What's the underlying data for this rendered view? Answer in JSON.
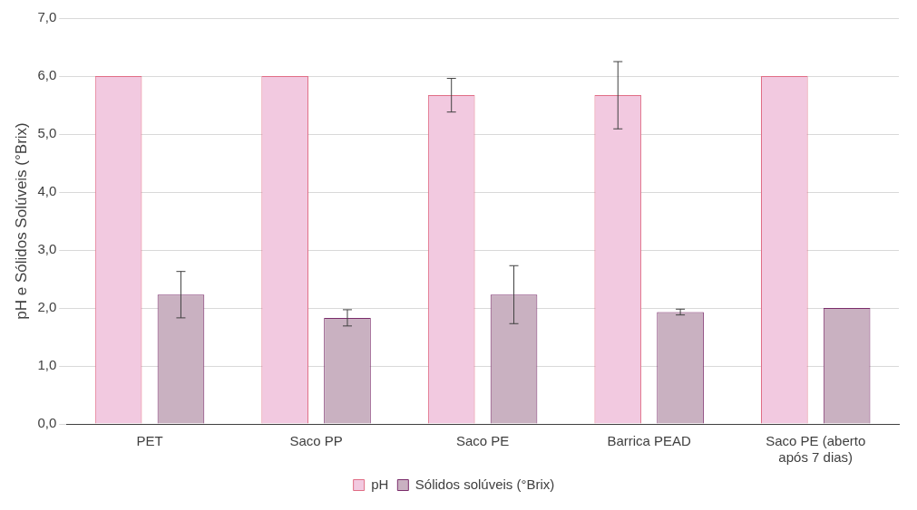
{
  "chart_data": {
    "type": "bar",
    "ylabel": "pH e Sólidos Solúveis (°Brix)",
    "categories": [
      "PET",
      "Saco PP",
      "Saco PE",
      "Barrica PEAD",
      "Saco PE (aberto após 7 dias)"
    ],
    "series": [
      {
        "name": "pH",
        "color": "#f2c9e0",
        "values": [
          6.0,
          6.0,
          5.67,
          5.67,
          6.0
        ],
        "errors": [
          null,
          null,
          0.29,
          0.58,
          null
        ]
      },
      {
        "name": "Sólidos solúveis (°Brix)",
        "color": "#c9b1c1",
        "values": [
          2.23,
          1.83,
          2.23,
          1.93,
          2.0
        ],
        "errors": [
          0.4,
          0.14,
          0.5,
          0.05,
          null
        ]
      }
    ],
    "ylim": [
      0,
      7
    ],
    "yticks": [
      {
        "value": 0,
        "label": "0,0"
      },
      {
        "value": 1,
        "label": "1,0"
      },
      {
        "value": 2,
        "label": "2,0"
      },
      {
        "value": 3,
        "label": "3,0"
      },
      {
        "value": 4,
        "label": "4,0"
      },
      {
        "value": 5,
        "label": "5,0"
      },
      {
        "value": 6,
        "label": "6,0"
      },
      {
        "value": 7,
        "label": "7,0"
      }
    ],
    "grid": "y",
    "legend": "bottom"
  }
}
